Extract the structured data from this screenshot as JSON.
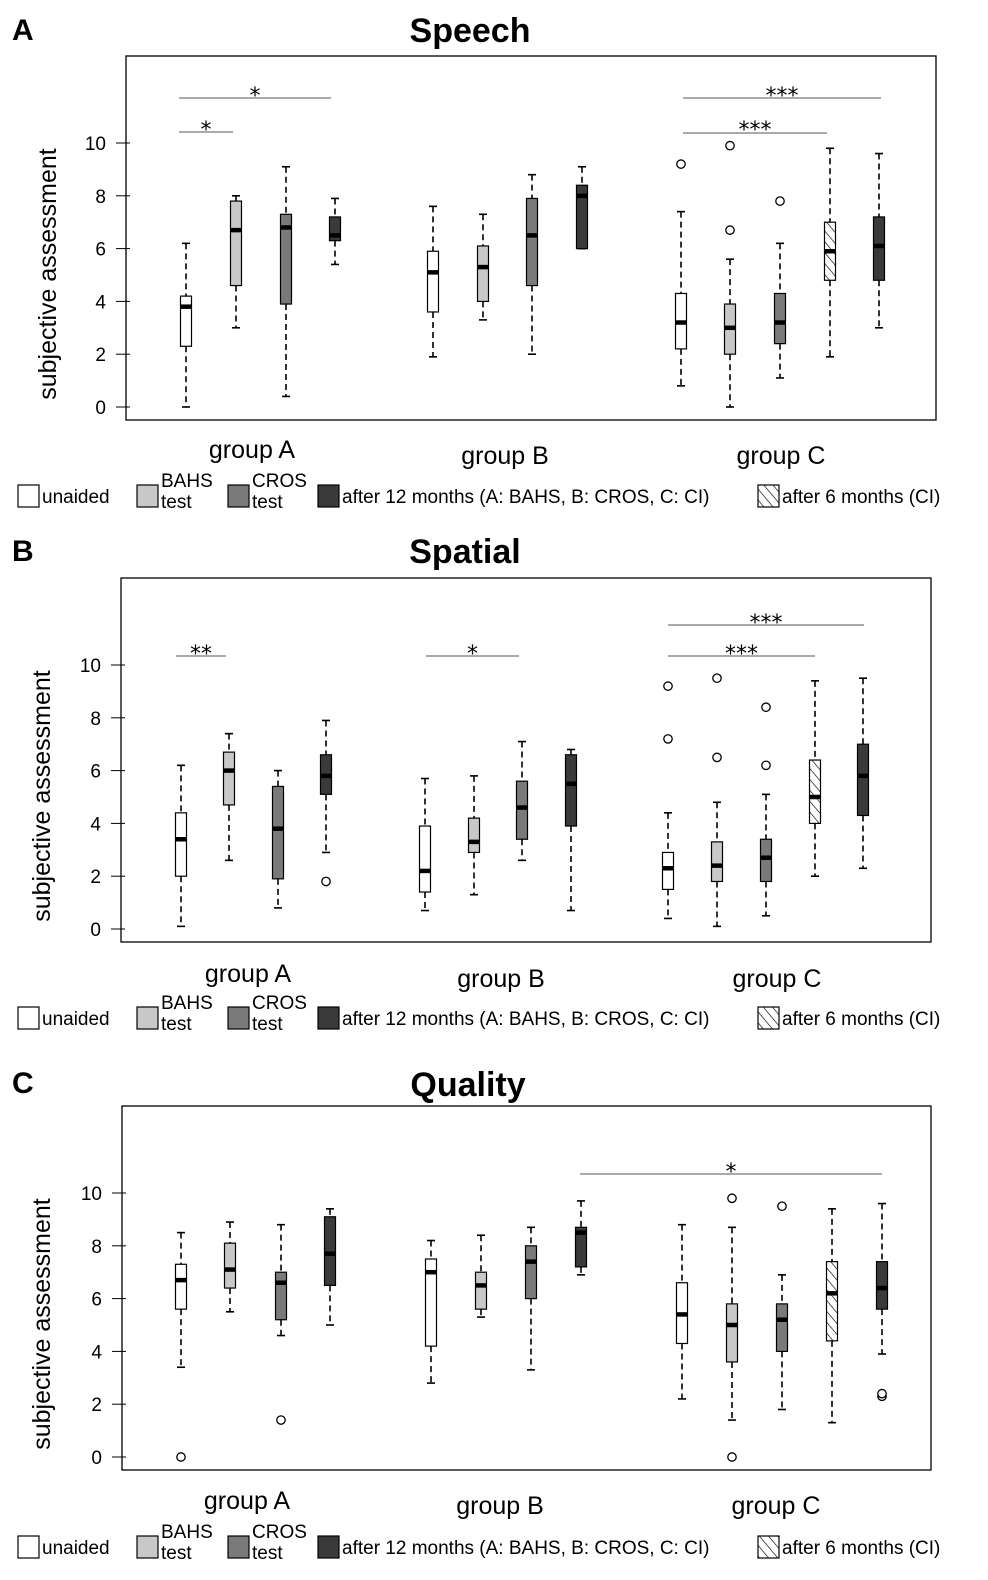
{
  "legend": [
    {
      "key": "unaided",
      "lines": [
        "unaided"
      ],
      "color": "#ffffff"
    },
    {
      "key": "bahs",
      "lines": [
        "BAHS",
        "test"
      ],
      "color": "#c8c8c8"
    },
    {
      "key": "cros",
      "lines": [
        "CROS",
        "test"
      ],
      "color": "#7a7a7a"
    },
    {
      "key": "m12",
      "lines": [
        "after 12 months (A: BAHS, B: CROS, C: CI)"
      ],
      "color": "#3a3a3a"
    },
    {
      "key": "m6",
      "lines": [
        "after 6 months (CI)"
      ],
      "color": "hatched"
    }
  ],
  "chart_data": [
    {
      "type": "box",
      "panel": "A",
      "title": "Speech",
      "ylabel": "subjective assessment",
      "yticks": [
        0,
        2,
        4,
        6,
        8,
        10
      ],
      "groups": [
        "group A",
        "group B",
        "group C"
      ],
      "boxes": [
        {
          "group": "group A",
          "series": "unaided",
          "min": 0.0,
          "q1": 2.3,
          "median": 3.8,
          "q3": 4.2,
          "max": 6.2,
          "outliers": []
        },
        {
          "group": "group A",
          "series": "BAHS test",
          "min": 3.0,
          "q1": 4.6,
          "median": 6.7,
          "q3": 7.8,
          "max": 8.0,
          "outliers": []
        },
        {
          "group": "group A",
          "series": "CROS test",
          "min": 0.4,
          "q1": 3.9,
          "median": 6.8,
          "q3": 7.3,
          "max": 9.1,
          "outliers": []
        },
        {
          "group": "group A",
          "series": "after 12 months",
          "min": 5.4,
          "q1": 6.3,
          "median": 6.5,
          "q3": 7.2,
          "max": 7.9,
          "outliers": []
        },
        {
          "group": "group B",
          "series": "unaided",
          "min": 1.9,
          "q1": 3.6,
          "median": 5.1,
          "q3": 5.9,
          "max": 7.6,
          "outliers": []
        },
        {
          "group": "group B",
          "series": "BAHS test",
          "min": 3.3,
          "q1": 4.0,
          "median": 5.3,
          "q3": 6.1,
          "max": 7.3,
          "outliers": []
        },
        {
          "group": "group B",
          "series": "CROS test",
          "min": 2.0,
          "q1": 4.6,
          "median": 6.5,
          "q3": 7.9,
          "max": 8.8,
          "outliers": []
        },
        {
          "group": "group B",
          "series": "after 12 months",
          "min": 6.0,
          "q1": 6.0,
          "median": 8.0,
          "q3": 8.4,
          "max": 9.1,
          "outliers": []
        },
        {
          "group": "group C",
          "series": "unaided",
          "min": 0.8,
          "q1": 2.2,
          "median": 3.2,
          "q3": 4.3,
          "max": 7.4,
          "outliers": [
            9.2
          ]
        },
        {
          "group": "group C",
          "series": "BAHS test",
          "min": 0.0,
          "q1": 2.0,
          "median": 3.0,
          "q3": 3.9,
          "max": 5.6,
          "outliers": [
            6.7,
            9.9
          ]
        },
        {
          "group": "group C",
          "series": "CROS test",
          "min": 1.1,
          "q1": 2.4,
          "median": 3.2,
          "q3": 4.3,
          "max": 6.2,
          "outliers": [
            7.8
          ]
        },
        {
          "group": "group C",
          "series": "after 6 months (CI)",
          "min": 1.9,
          "q1": 4.8,
          "median": 5.9,
          "q3": 7.0,
          "max": 9.8,
          "outliers": []
        },
        {
          "group": "group C",
          "series": "after 12 months",
          "min": 3.0,
          "q1": 4.8,
          "median": 6.1,
          "q3": 7.2,
          "max": 9.6,
          "outliers": []
        }
      ],
      "significance": [
        {
          "from": "group A unaided",
          "to": "group A BAHS test",
          "label": "*"
        },
        {
          "from": "group A unaided",
          "to": "group A after 12 months",
          "label": "*"
        },
        {
          "from": "group C unaided",
          "to": "group C after 6 months (CI)",
          "label": "***"
        },
        {
          "from": "group C unaided",
          "to": "group C after 12 months",
          "label": "***"
        }
      ]
    },
    {
      "type": "box",
      "panel": "B",
      "title": "Spatial",
      "ylabel": "subjective assessment",
      "yticks": [
        0,
        2,
        4,
        6,
        8,
        10
      ],
      "groups": [
        "group A",
        "group B",
        "group C"
      ],
      "boxes": [
        {
          "group": "group A",
          "series": "unaided",
          "min": 0.1,
          "q1": 2.0,
          "median": 3.4,
          "q3": 4.4,
          "max": 6.2,
          "outliers": []
        },
        {
          "group": "group A",
          "series": "BAHS test",
          "min": 2.6,
          "q1": 4.7,
          "median": 6.0,
          "q3": 6.7,
          "max": 7.4,
          "outliers": []
        },
        {
          "group": "group A",
          "series": "CROS test",
          "min": 0.8,
          "q1": 1.9,
          "median": 3.8,
          "q3": 5.4,
          "max": 6.0,
          "outliers": []
        },
        {
          "group": "group A",
          "series": "after 12 months",
          "min": 2.9,
          "q1": 5.1,
          "median": 5.8,
          "q3": 6.6,
          "max": 7.9,
          "outliers": [
            1.8
          ]
        },
        {
          "group": "group B",
          "series": "unaided",
          "min": 0.7,
          "q1": 1.4,
          "median": 2.2,
          "q3": 3.9,
          "max": 5.7,
          "outliers": []
        },
        {
          "group": "group B",
          "series": "BAHS test",
          "min": 1.3,
          "q1": 2.9,
          "median": 3.3,
          "q3": 4.2,
          "max": 5.8,
          "outliers": []
        },
        {
          "group": "group B",
          "series": "CROS test",
          "min": 2.6,
          "q1": 3.4,
          "median": 4.6,
          "q3": 5.6,
          "max": 7.1,
          "outliers": []
        },
        {
          "group": "group B",
          "series": "after 12 months",
          "min": 0.7,
          "q1": 3.9,
          "median": 5.5,
          "q3": 6.6,
          "max": 6.8,
          "outliers": []
        },
        {
          "group": "group C",
          "series": "unaided",
          "min": 0.4,
          "q1": 1.5,
          "median": 2.3,
          "q3": 2.9,
          "max": 4.4,
          "outliers": [
            7.2,
            9.2
          ]
        },
        {
          "group": "group C",
          "series": "BAHS test",
          "min": 0.1,
          "q1": 1.8,
          "median": 2.4,
          "q3": 3.3,
          "max": 4.8,
          "outliers": [
            6.5,
            9.5
          ]
        },
        {
          "group": "group C",
          "series": "CROS test",
          "min": 0.5,
          "q1": 1.8,
          "median": 2.7,
          "q3": 3.4,
          "max": 5.1,
          "outliers": [
            6.2,
            8.4
          ]
        },
        {
          "group": "group C",
          "series": "after 6 months (CI)",
          "min": 2.0,
          "q1": 4.0,
          "median": 5.0,
          "q3": 6.4,
          "max": 9.4,
          "outliers": []
        },
        {
          "group": "group C",
          "series": "after 12 months",
          "min": 2.3,
          "q1": 4.3,
          "median": 5.8,
          "q3": 7.0,
          "max": 9.5,
          "outliers": []
        }
      ],
      "significance": [
        {
          "from": "group A unaided",
          "to": "group A BAHS test",
          "label": "**"
        },
        {
          "from": "group B unaided",
          "to": "group B CROS test",
          "label": "*"
        },
        {
          "from": "group C unaided",
          "to": "group C after 6 months (CI)",
          "label": "***"
        },
        {
          "from": "group C unaided",
          "to": "group C after 12 months",
          "label": "***"
        }
      ]
    },
    {
      "type": "box",
      "panel": "C",
      "title": "Quality",
      "ylabel": "subjective assessment",
      "yticks": [
        0,
        2,
        4,
        6,
        8,
        10
      ],
      "groups": [
        "group A",
        "group B",
        "group C"
      ],
      "boxes": [
        {
          "group": "group A",
          "series": "unaided",
          "min": 3.4,
          "q1": 5.6,
          "median": 6.7,
          "q3": 7.3,
          "max": 8.5,
          "outliers": [
            0.0
          ]
        },
        {
          "group": "group A",
          "series": "BAHS test",
          "min": 5.5,
          "q1": 6.4,
          "median": 7.1,
          "q3": 8.1,
          "max": 8.9,
          "outliers": []
        },
        {
          "group": "group A",
          "series": "CROS test",
          "min": 4.6,
          "q1": 5.2,
          "median": 6.6,
          "q3": 7.0,
          "max": 8.8,
          "outliers": [
            1.4
          ]
        },
        {
          "group": "group A",
          "series": "after 12 months",
          "min": 5.0,
          "q1": 6.5,
          "median": 7.7,
          "q3": 9.1,
          "max": 9.4,
          "outliers": []
        },
        {
          "group": "group B",
          "series": "unaided",
          "min": 2.8,
          "q1": 4.2,
          "median": 7.0,
          "q3": 7.5,
          "max": 8.2,
          "outliers": []
        },
        {
          "group": "group B",
          "series": "BAHS test",
          "min": 5.3,
          "q1": 5.6,
          "median": 6.5,
          "q3": 7.0,
          "max": 8.4,
          "outliers": []
        },
        {
          "group": "group B",
          "series": "CROS test",
          "min": 3.3,
          "q1": 6.0,
          "median": 7.4,
          "q3": 8.0,
          "max": 8.7,
          "outliers": []
        },
        {
          "group": "group B",
          "series": "after 12 months",
          "min": 6.9,
          "q1": 7.2,
          "median": 8.5,
          "q3": 8.7,
          "max": 9.7,
          "outliers": []
        },
        {
          "group": "group C",
          "series": "unaided",
          "min": 2.2,
          "q1": 4.3,
          "median": 5.4,
          "q3": 6.6,
          "max": 8.8,
          "outliers": []
        },
        {
          "group": "group C",
          "series": "BAHS test",
          "min": 1.4,
          "q1": 3.6,
          "median": 5.0,
          "q3": 5.8,
          "max": 8.7,
          "outliers": [
            0.0,
            9.8
          ]
        },
        {
          "group": "group C",
          "series": "CROS test",
          "min": 1.8,
          "q1": 4.0,
          "median": 5.2,
          "q3": 5.8,
          "max": 6.9,
          "outliers": [
            9.5
          ]
        },
        {
          "group": "group C",
          "series": "after 6 months (CI)",
          "min": 1.3,
          "q1": 4.4,
          "median": 6.2,
          "q3": 7.4,
          "max": 9.4,
          "outliers": []
        },
        {
          "group": "group C",
          "series": "after 12 months",
          "min": 3.9,
          "q1": 5.6,
          "median": 6.4,
          "q3": 7.4,
          "max": 9.6,
          "outliers": [
            2.3,
            2.4
          ]
        }
      ],
      "significance": [
        {
          "from": "group B after 12 months",
          "to": "group C after 12 months",
          "label": "*"
        }
      ]
    }
  ]
}
